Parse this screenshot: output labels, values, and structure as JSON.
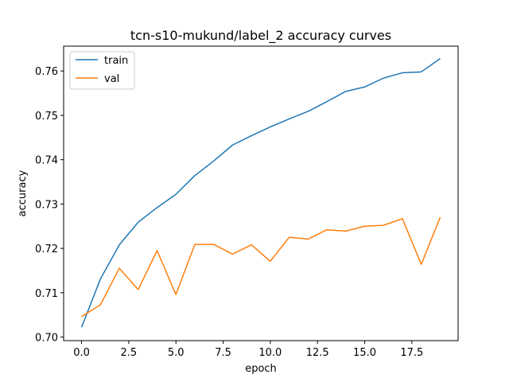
{
  "chart_data": {
    "type": "line",
    "title": "tcn-s10-mukund/label_2 accuracy curves",
    "xlabel": "epoch",
    "ylabel": "accuracy",
    "xlim": [
      -0.95,
      19.95
    ],
    "ylim": [
      0.6992,
      0.7656
    ],
    "xticks": [
      0.0,
      2.5,
      5.0,
      7.5,
      10.0,
      12.5,
      15.0,
      17.5
    ],
    "xtick_labels": [
      "0.0",
      "2.5",
      "5.0",
      "7.5",
      "10.0",
      "12.5",
      "15.0",
      "17.5"
    ],
    "yticks": [
      0.7,
      0.71,
      0.72,
      0.73,
      0.74,
      0.75,
      0.76
    ],
    "ytick_labels": [
      "0.70",
      "0.71",
      "0.72",
      "0.73",
      "0.74",
      "0.75",
      "0.76"
    ],
    "grid": false,
    "legend_position": "top-left",
    "x": [
      0,
      1,
      2,
      3,
      4,
      5,
      6,
      7,
      8,
      9,
      10,
      11,
      12,
      13,
      14,
      15,
      16,
      17,
      18,
      19
    ],
    "series": [
      {
        "name": "train",
        "color": "#1f77b4",
        "values": [
          0.7022,
          0.7131,
          0.7208,
          0.7259,
          0.7292,
          0.7322,
          0.7364,
          0.7397,
          0.7433,
          0.7454,
          0.7474,
          0.7492,
          0.7509,
          0.7531,
          0.7554,
          0.7564,
          0.7584,
          0.7596,
          0.7598,
          0.7628
        ]
      },
      {
        "name": "val",
        "color": "#ff7f0e",
        "values": [
          0.7046,
          0.7073,
          0.7155,
          0.7107,
          0.7195,
          0.7096,
          0.7209,
          0.7209,
          0.7187,
          0.7208,
          0.7171,
          0.7225,
          0.7221,
          0.7242,
          0.7239,
          0.725,
          0.7252,
          0.7267,
          0.7164,
          0.727
        ]
      }
    ]
  }
}
